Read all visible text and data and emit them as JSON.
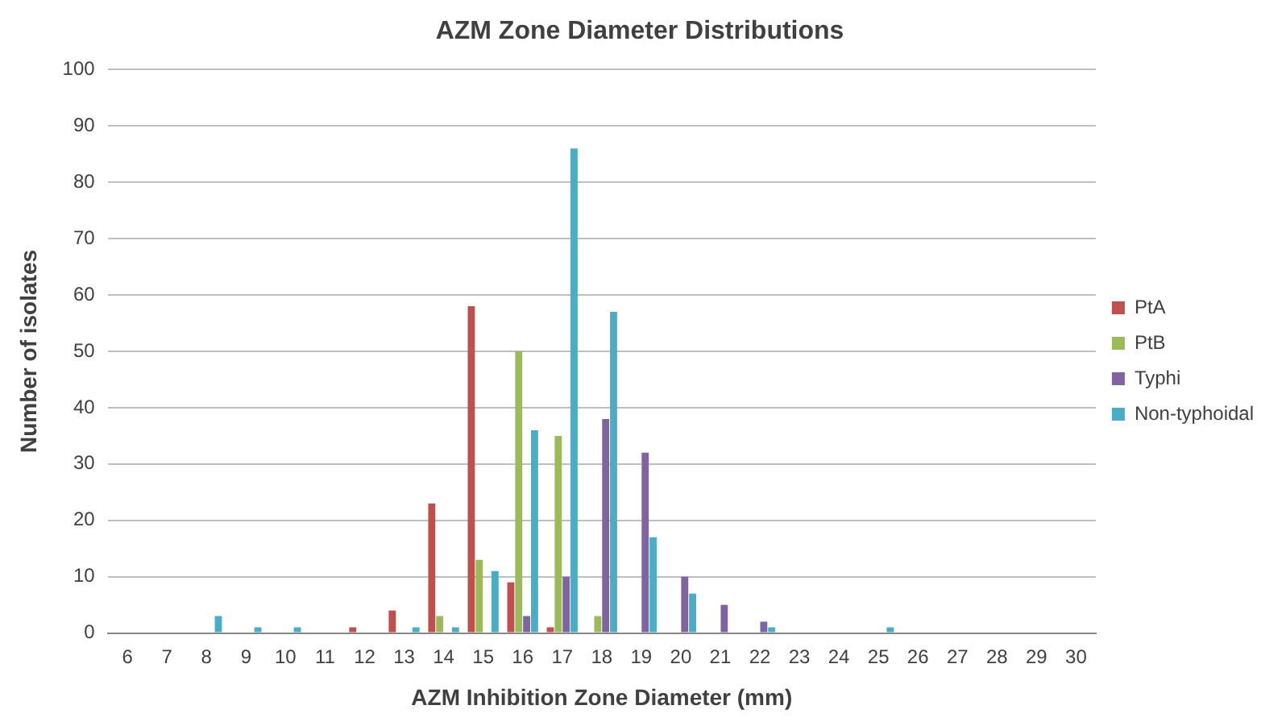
{
  "chart_data": {
    "type": "bar",
    "title": "AZM Zone Diameter Distributions",
    "xlabel": "AZM Inhibition Zone Diameter (mm)",
    "ylabel": "Number of isolates",
    "categories": [
      "6",
      "7",
      "8",
      "9",
      "10",
      "11",
      "12",
      "13",
      "14",
      "15",
      "16",
      "17",
      "18",
      "19",
      "20",
      "21",
      "22",
      "23",
      "24",
      "25",
      "26",
      "27",
      "28",
      "29",
      "30"
    ],
    "series": [
      {
        "name": "PtA",
        "color": "#c0504d",
        "values": [
          0,
          0,
          0,
          0,
          0,
          0,
          1,
          4,
          23,
          58,
          9,
          1,
          0,
          0,
          0,
          0,
          0,
          0,
          0,
          0,
          0,
          0,
          0,
          0,
          0
        ]
      },
      {
        "name": "PtB",
        "color": "#9bbb59",
        "values": [
          0,
          0,
          0,
          0,
          0,
          0,
          0,
          0,
          3,
          13,
          50,
          35,
          3,
          0,
          0,
          0,
          0,
          0,
          0,
          0,
          0,
          0,
          0,
          0,
          0
        ]
      },
      {
        "name": "Typhi",
        "color": "#8064a2",
        "values": [
          0,
          0,
          0,
          0,
          0,
          0,
          0,
          0,
          0,
          0,
          3,
          10,
          38,
          32,
          10,
          5,
          2,
          0,
          0,
          0,
          0,
          0,
          0,
          0,
          0
        ]
      },
      {
        "name": "Non-typhoidal",
        "color": "#4bacc6",
        "values": [
          0,
          0,
          3,
          1,
          1,
          0,
          0,
          1,
          1,
          11,
          36,
          86,
          57,
          17,
          7,
          0,
          1,
          0,
          0,
          1,
          0,
          0,
          0,
          0,
          0
        ]
      }
    ],
    "ylim": [
      0,
      100
    ],
    "yticks": [
      0,
      10,
      20,
      30,
      40,
      50,
      60,
      70,
      80,
      90,
      100
    ],
    "grid": "y",
    "legend": "right"
  }
}
